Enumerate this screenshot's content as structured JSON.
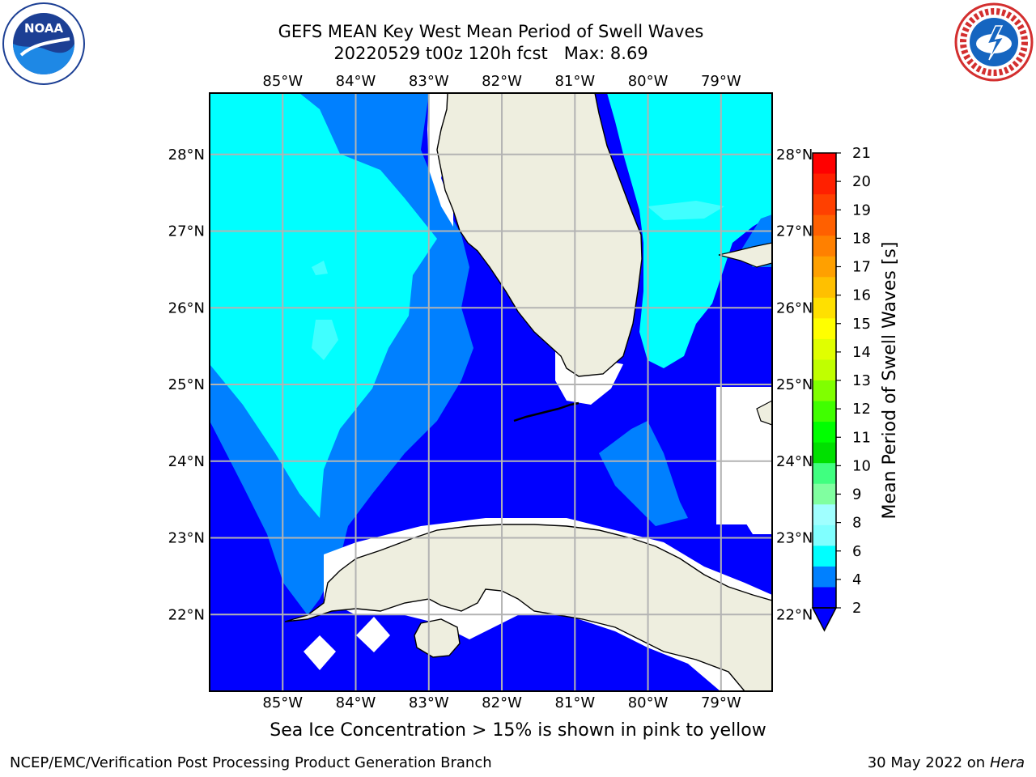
{
  "title_line1": "GEFS MEAN Key West Mean Period of Swell Waves",
  "title_line2": "20220529 t00z 120h fcst",
  "title_max": "Max: 8.69",
  "sea_ice_note": "Sea Ice Concentration > 15% is shown in pink to yellow",
  "footer_left": "NCEP/EMC/Verification Post Processing Product Generation Branch",
  "footer_date": "30 May 2022 on",
  "footer_host": "Hera",
  "logos": {
    "noaa": {
      "text": "NOAA",
      "ring_text": "NATIONAL OCEANIC AND ATMOSPHERIC ADMINISTRATION · U.S. DEPARTMENT OF COMMERCE"
    },
    "nws": {
      "ring_text": "NATIONAL WEATHER SERVICE"
    }
  },
  "map": {
    "lon_labels": [
      "85°W",
      "84°W",
      "83°W",
      "82°W",
      "81°W",
      "80°W",
      "79°W"
    ],
    "lat_labels": [
      "28°N",
      "27°N",
      "26°N",
      "25°N",
      "24°N",
      "23°N",
      "22°N"
    ],
    "lon_range": [
      -86.0,
      -78.3
    ],
    "lat_range": [
      21.0,
      28.8
    ],
    "colors": {
      "land": "#eeeedf",
      "coast": "#000000",
      "grid": "#b3b3b3",
      "period_2_4": "#0000ff",
      "period_4_6": "#0080ff",
      "period_6_8": "#00ffff",
      "period_8_9": "#40ffff",
      "no_data": "#ffffff"
    }
  },
  "colorbar": {
    "label": "Mean Period of Swell Waves [s]",
    "ticks": [
      "21",
      "20",
      "19",
      "18",
      "17",
      "16",
      "15",
      "14",
      "13",
      "12",
      "11",
      "10",
      "9",
      "8",
      "6",
      "4",
      "2"
    ],
    "colors": [
      "#ff0000",
      "#ff2000",
      "#ff4000",
      "#ff6000",
      "#ff8000",
      "#ffa000",
      "#ffc000",
      "#ffe000",
      "#ffff00",
      "#e0ff00",
      "#c0ff00",
      "#80ff00",
      "#40ff00",
      "#00ff00",
      "#00e000",
      "#40ff80",
      "#80ffa0",
      "#a0ffff",
      "#80ffff",
      "#00ffff",
      "#0080ff",
      "#0000ff"
    ],
    "under_color": "#0000ff"
  }
}
